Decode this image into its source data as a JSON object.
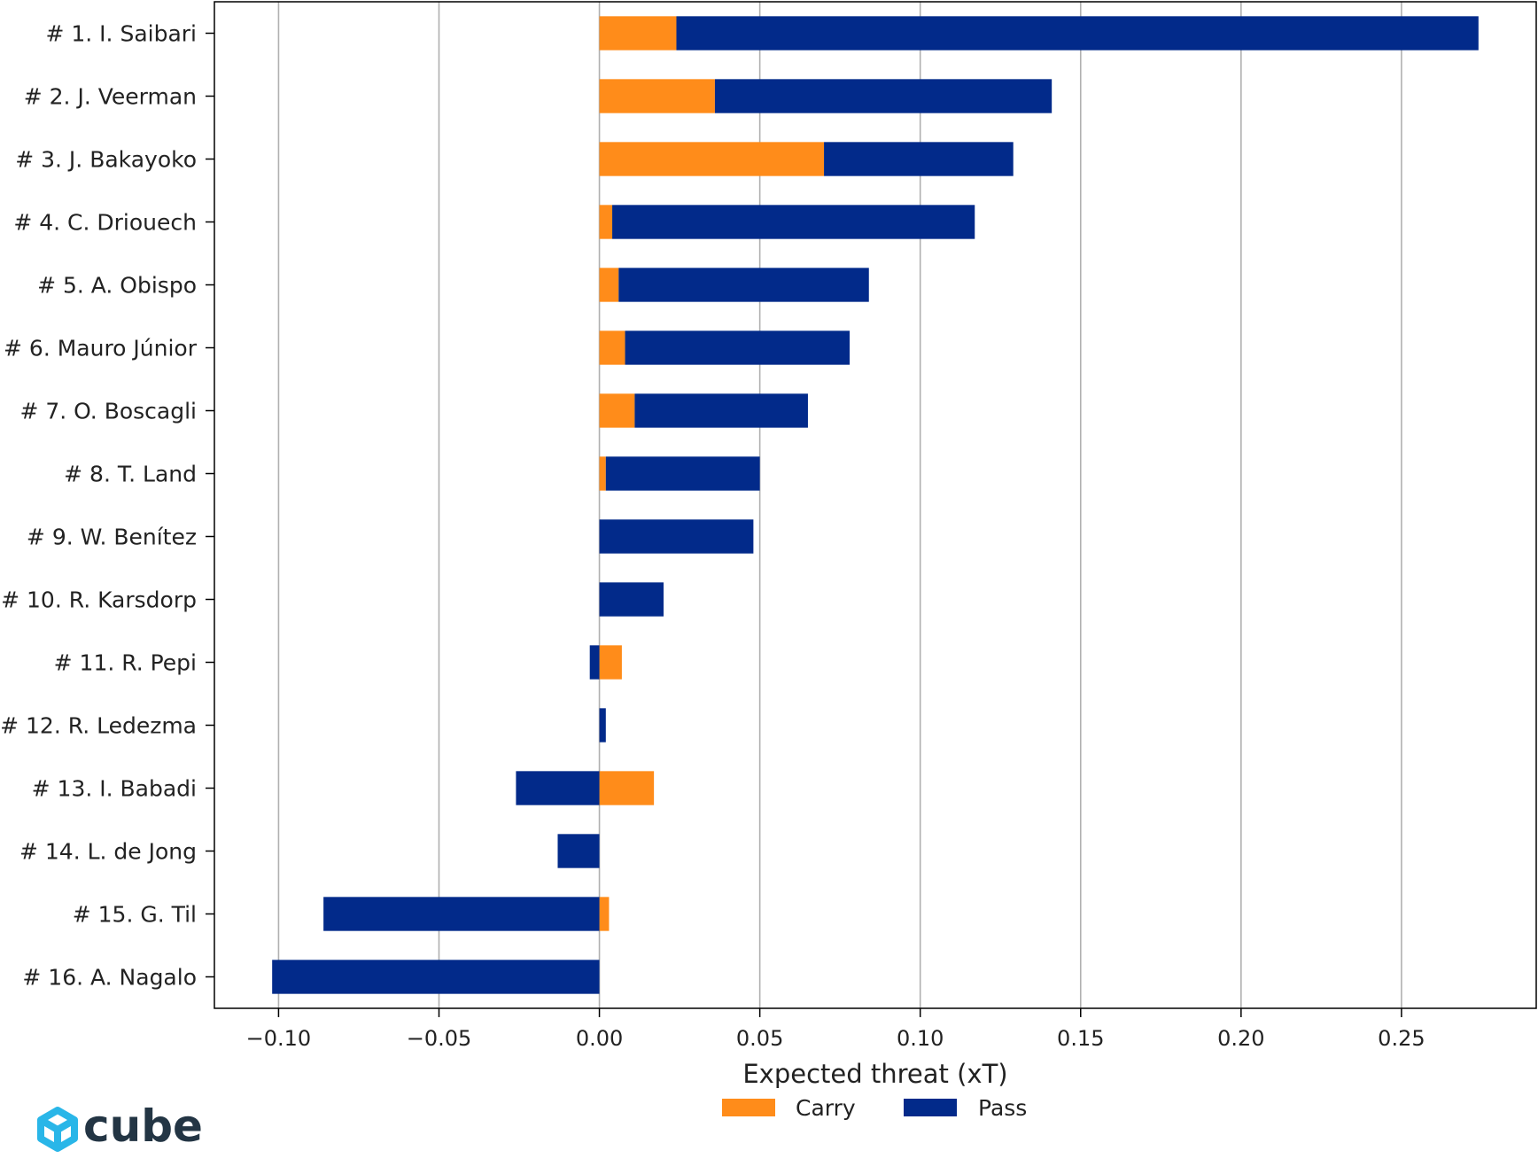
{
  "chart_data": {
    "type": "bar",
    "orientation": "horizontal",
    "stacked": true,
    "categories": [
      "# 1.  I. Saibari",
      "# 2.  J. Veerman",
      "# 3.  J. Bakayoko",
      "# 4.  C. Driouech",
      "# 5.  A. Obispo",
      "# 6.  Mauro Júnior",
      "# 7.  O. Boscagli",
      "# 8.  T. Land",
      "# 9.  W. Benítez",
      "# 10.  R. Karsdorp",
      "# 11.  R. Pepi",
      "# 12.  R. Ledezma",
      "# 13.  I. Babadi",
      "# 14.  L. de Jong",
      "# 15.  G. Til",
      "# 16.  A. Nagalo"
    ],
    "series": [
      {
        "name": "Carry",
        "color": "#ff8c1a",
        "values": [
          0.024,
          0.036,
          0.07,
          0.004,
          0.006,
          0.008,
          0.011,
          0.002,
          0.0,
          0.0,
          0.007,
          0.0,
          0.017,
          0.0,
          0.003,
          0.0
        ]
      },
      {
        "name": "Pass",
        "color": "#022a8a",
        "values": [
          0.25,
          0.105,
          0.059,
          0.113,
          0.078,
          0.07,
          0.054,
          0.048,
          0.048,
          0.02,
          -0.003,
          0.002,
          -0.026,
          -0.013,
          -0.086,
          -0.102
        ]
      }
    ],
    "xlabel": "Expected threat (xT)",
    "xlim": [
      -0.12,
      0.292
    ],
    "xticks": [
      -0.1,
      -0.05,
      0.0,
      0.05,
      0.1,
      0.15,
      0.2,
      0.25
    ],
    "xtick_labels": [
      "−0.10",
      "−0.05",
      "0.00",
      "0.05",
      "0.10",
      "0.15",
      "0.20",
      "0.25"
    ],
    "grid": "vertical",
    "legend_position": "bottom-center"
  },
  "logo": {
    "text": "cube",
    "icon": "cube-logo-icon",
    "color": "#29b6e8"
  }
}
